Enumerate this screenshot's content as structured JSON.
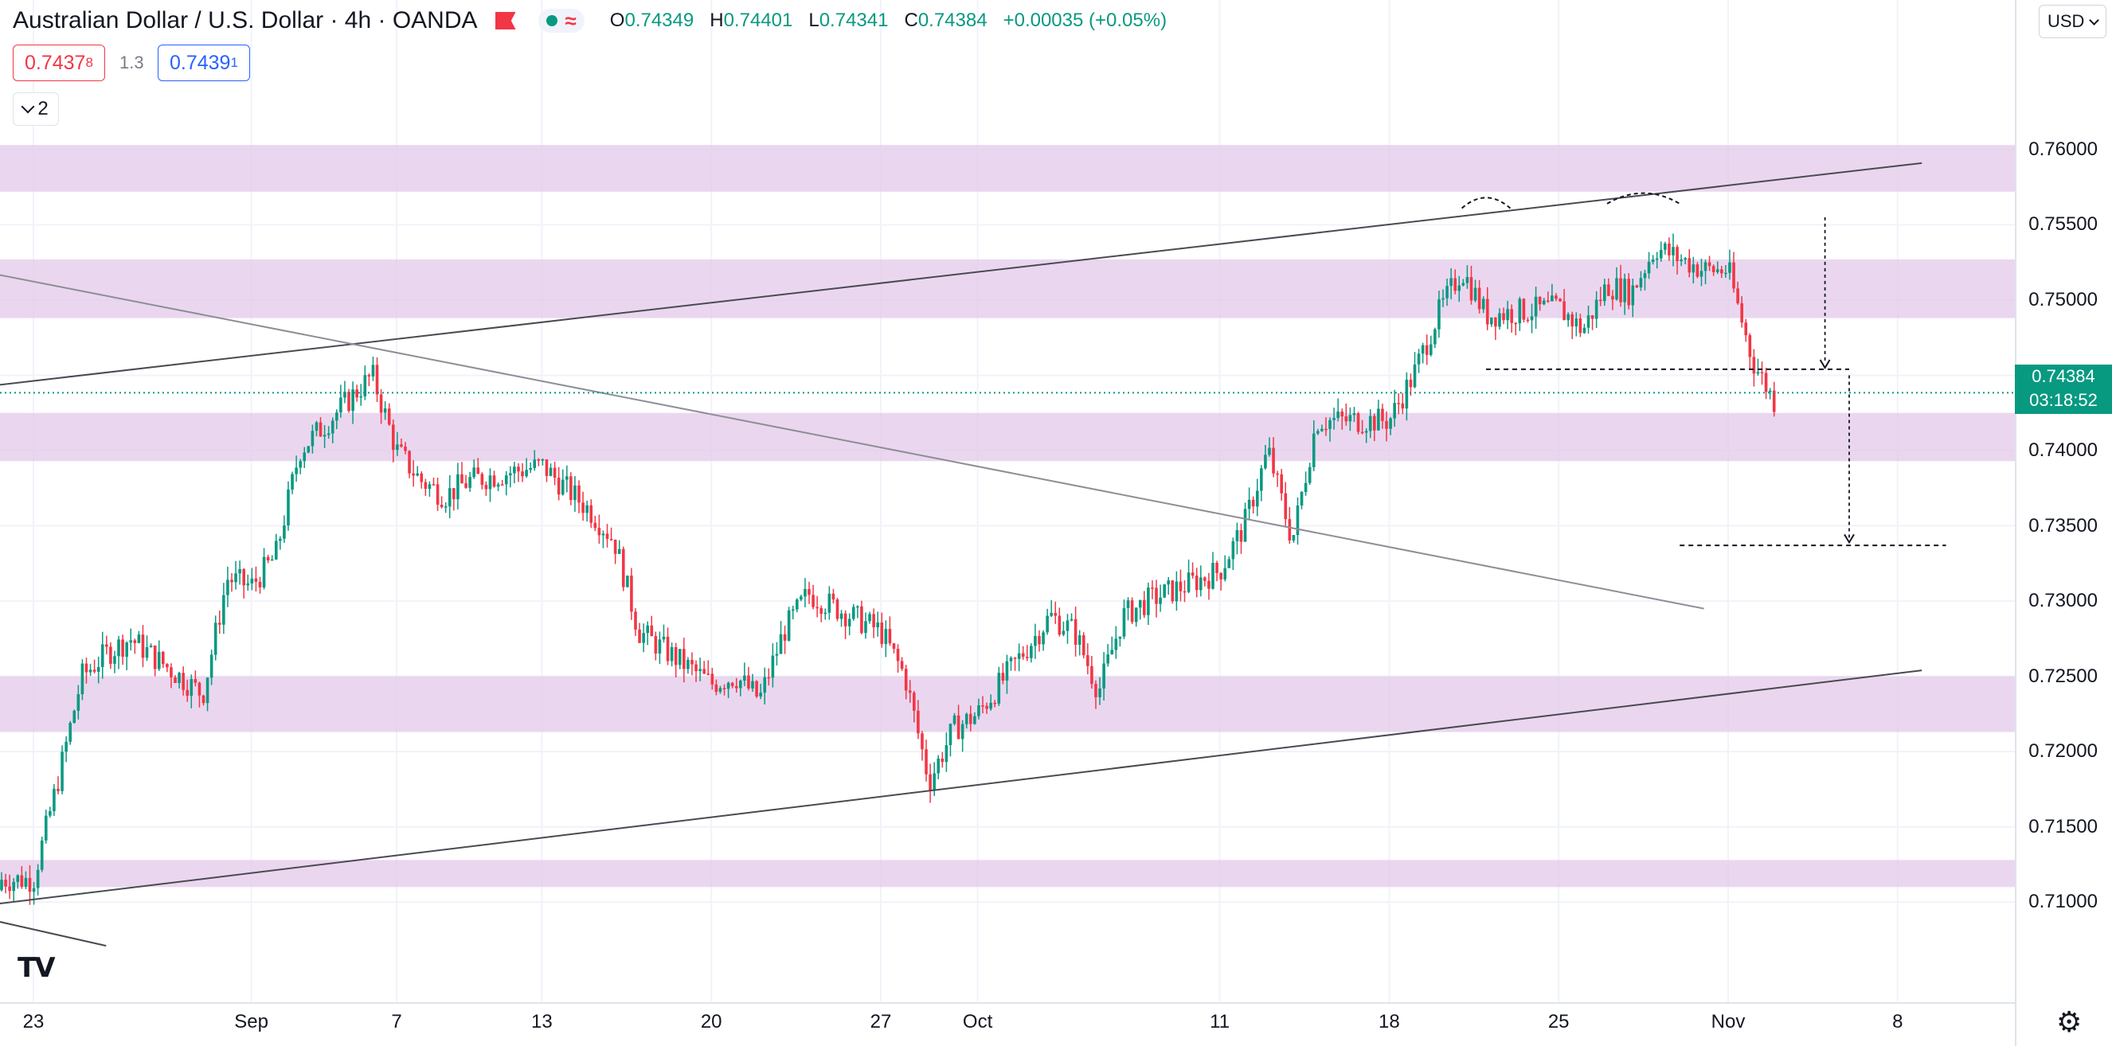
{
  "header": {
    "title": "Australian Dollar / U.S. Dollar · 4h · OANDA",
    "ohlc": {
      "open_label": "O",
      "open": "0.74349",
      "high_label": "H",
      "high": "0.74401",
      "low_label": "L",
      "low": "0.74341",
      "close_label": "C",
      "close": "0.74384",
      "change": "+0.00035 (+0.05%)"
    }
  },
  "trade": {
    "sell_price": "0.7437",
    "sell_pip": "8",
    "spread": "1.3",
    "buy_price": "0.7439",
    "buy_pip": "1"
  },
  "indicators_toggle": {
    "count": "2"
  },
  "currency_button": {
    "label": "USD"
  },
  "current_price": {
    "value": "0.74384",
    "countdown": "03:18:52"
  },
  "colors": {
    "up": "#089981",
    "down": "#f23645",
    "zone": "#e1c6e8",
    "accent": "#089981"
  },
  "icons": [
    "flag-icon",
    "status-dot-icon",
    "wave-icon",
    "chevron-down-icon",
    "tradingview-logo-icon",
    "gear-icon"
  ],
  "chart_data": {
    "type": "candlestick",
    "symbol": "AUD/USD",
    "timeframe": "4h",
    "ylim": [
      0.707,
      0.762
    ],
    "y_ticks": [
      "0.76000",
      "0.75500",
      "0.75000",
      "0.74500",
      "0.74000",
      "0.73500",
      "0.73000",
      "0.72500",
      "0.72000",
      "0.71500",
      "0.71000"
    ],
    "x_ticks": [
      "23",
      "Sep",
      "7",
      "13",
      "20",
      "27",
      "Oct",
      "11",
      "18",
      "25",
      "Nov",
      "8"
    ],
    "series": [
      {
        "name": "AUDUSD",
        "anchors": [
          [
            "2021-08-23",
            0.7115
          ],
          [
            "2021-08-24",
            0.718
          ],
          [
            "2021-08-25",
            0.725
          ],
          [
            "2021-08-26",
            0.7265
          ],
          [
            "2021-08-27",
            0.7275
          ],
          [
            "2021-08-30",
            0.7238
          ],
          [
            "2021-08-31",
            0.7315
          ],
          [
            "2021-09-01",
            0.731
          ],
          [
            "2021-09-02",
            0.733
          ],
          [
            "2021-09-03",
            0.74
          ],
          [
            "2021-09-06",
            0.745
          ],
          [
            "2021-09-07",
            0.74
          ],
          [
            "2021-09-08",
            0.738
          ],
          [
            "2021-09-09",
            0.737
          ],
          [
            "2021-09-10",
            0.738
          ],
          [
            "2021-09-13",
            0.739
          ],
          [
            "2021-09-14",
            0.7375
          ],
          [
            "2021-09-15",
            0.736
          ],
          [
            "2021-09-16",
            0.734
          ],
          [
            "2021-09-17",
            0.728
          ],
          [
            "2021-09-20",
            0.7245
          ],
          [
            "2021-09-21",
            0.725
          ],
          [
            "2021-09-22",
            0.7235
          ],
          [
            "2021-09-23",
            0.728
          ],
          [
            "2021-09-24",
            0.7305
          ],
          [
            "2021-09-27",
            0.728
          ],
          [
            "2021-09-28",
            0.725
          ],
          [
            "2021-09-29",
            0.718
          ],
          [
            "2021-09-30",
            0.7215
          ],
          [
            "2021-10-01",
            0.7225
          ],
          [
            "2021-10-04",
            0.729
          ],
          [
            "2021-10-05",
            0.728
          ],
          [
            "2021-10-06",
            0.724
          ],
          [
            "2021-10-07",
            0.729
          ],
          [
            "2021-10-08",
            0.73
          ],
          [
            "2021-10-11",
            0.732
          ],
          [
            "2021-10-12",
            0.735
          ],
          [
            "2021-10-13",
            0.74
          ],
          [
            "2021-10-14",
            0.734
          ],
          [
            "2021-10-15",
            0.742
          ],
          [
            "2021-10-18",
            0.742
          ],
          [
            "2021-10-19",
            0.745
          ],
          [
            "2021-10-20",
            0.749
          ],
          [
            "2021-10-21",
            0.752
          ],
          [
            "2021-10-22",
            0.749
          ],
          [
            "2021-10-25",
            0.7495
          ],
          [
            "2021-10-26",
            0.748
          ],
          [
            "2021-10-27",
            0.751
          ],
          [
            "2021-10-28",
            0.7505
          ],
          [
            "2021-10-29",
            0.7535
          ],
          [
            "2021-10-31",
            0.752
          ],
          [
            "2021-11-01",
            0.752
          ],
          [
            "2021-11-02",
            0.746
          ],
          [
            "2021-11-03",
            0.743
          ]
        ]
      }
    ],
    "zones": [
      [
        0.7572,
        0.7603
      ],
      [
        0.7488,
        0.7527
      ],
      [
        0.7393,
        0.7425
      ],
      [
        0.7213,
        0.725
      ],
      [
        0.711,
        0.7128
      ]
    ],
    "trendlines": [
      {
        "from": [
          "2021-08-18",
          0.7437
        ],
        "to": [
          "2021-11-09",
          0.7591
        ]
      },
      {
        "from": [
          "2021-08-18",
          0.7092
        ],
        "to": [
          "2021-11-09",
          0.7254
        ]
      },
      {
        "from": [
          "2021-08-18",
          0.7528
        ],
        "to": [
          "2021-10-31",
          0.7295
        ]
      },
      {
        "from": [
          "2021-08-18",
          0.71
        ],
        "to": [
          "2021-08-26",
          0.7071
        ]
      }
    ],
    "horizontal_levels": [
      {
        "price": 0.7454,
        "style": "dashed",
        "from": "2021-10-22",
        "to": "2021-11-06"
      },
      {
        "price": 0.7337,
        "style": "dashed",
        "from": "2021-10-30",
        "to": "2021-11-10"
      },
      {
        "price": 0.74384,
        "style": "dotted",
        "color": "#089981",
        "label": "current"
      }
    ],
    "annotations": [
      {
        "type": "arrow",
        "from": [
          "2021-11-05",
          0.7555
        ],
        "to": [
          "2021-11-05",
          0.7455
        ]
      },
      {
        "type": "arrow",
        "from": [
          "2021-11-06",
          0.745
        ],
        "to": [
          "2021-11-06",
          0.7339
        ]
      },
      {
        "type": "arc",
        "from": [
          "2021-10-21",
          0.7561
        ],
        "to": [
          "2021-10-23",
          0.7561
        ],
        "peak": 0.7568
      },
      {
        "type": "arc",
        "from": [
          "2021-10-27",
          0.7564
        ],
        "to": [
          "2021-10-30",
          0.7564
        ],
        "peak": 0.7571
      }
    ]
  }
}
